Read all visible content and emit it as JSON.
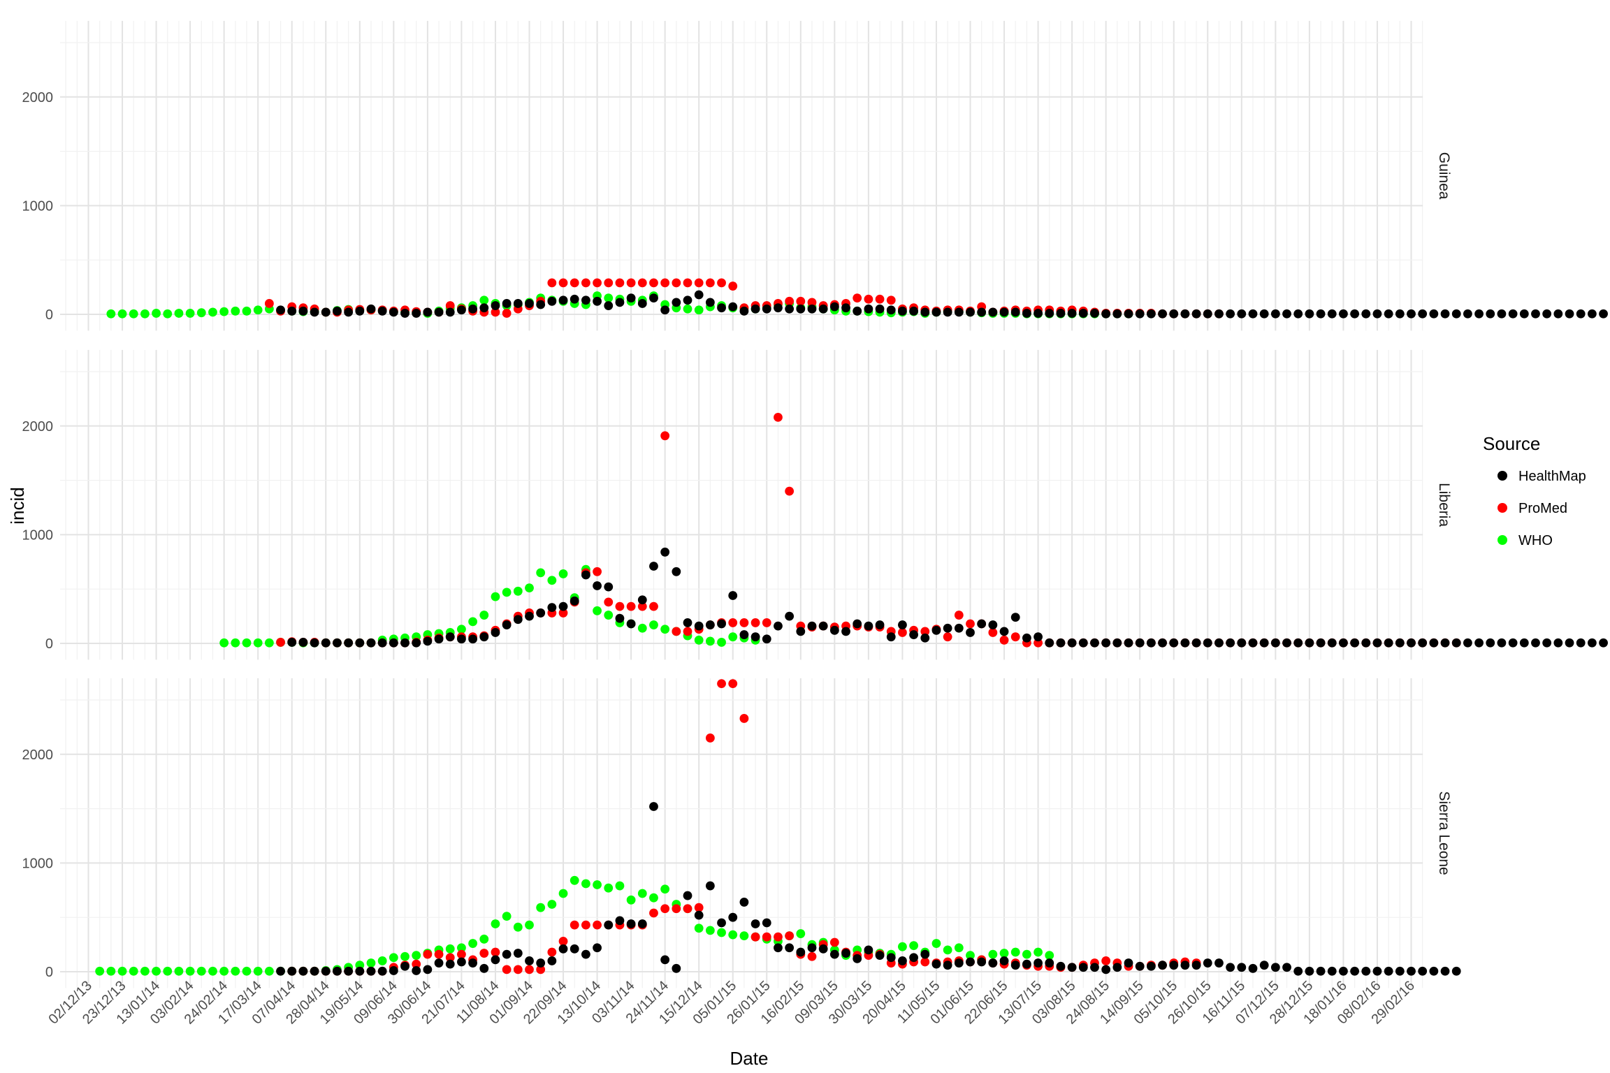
{
  "chart_data": {
    "type": "scatter",
    "title": "",
    "xlabel": "Date",
    "ylabel": "incid",
    "x_ticks": [
      "02/12/13",
      "23/12/13",
      "13/01/14",
      "03/02/14",
      "24/02/14",
      "17/03/14",
      "07/04/14",
      "28/04/14",
      "19/05/14",
      "09/06/14",
      "30/06/14",
      "21/07/14",
      "11/08/14",
      "01/09/14",
      "22/09/14",
      "13/10/14",
      "03/11/14",
      "24/11/14",
      "15/12/14",
      "05/01/15",
      "26/01/15",
      "16/02/15",
      "09/03/15",
      "30/03/15",
      "20/04/15",
      "11/05/15",
      "01/06/15",
      "22/06/15",
      "13/07/15",
      "03/08/15",
      "24/08/15",
      "14/09/15",
      "05/10/15",
      "26/10/15",
      "16/11/15",
      "07/12/15",
      "28/12/15",
      "18/01/16",
      "08/02/16",
      "29/02/16"
    ],
    "y_ticks": [
      0,
      1000,
      2000
    ],
    "ylim": [
      -150,
      2700
    ],
    "grid": true,
    "facet_labels": [
      "Guinea",
      "Liberia",
      "Sierra Leone"
    ],
    "legend": {
      "title": "Source",
      "position": "right",
      "entries": [
        {
          "label": "HealthMap",
          "color": "#000000"
        },
        {
          "label": "ProMed",
          "color": "#ff0000"
        },
        {
          "label": "WHO",
          "color": "#00ff00"
        }
      ]
    },
    "facets": [
      {
        "name": "Guinea",
        "series": [
          {
            "name": "WHO",
            "color": "#00ff00",
            "start": "16/12/13",
            "values": [
              5,
              5,
              5,
              5,
              10,
              5,
              10,
              10,
              15,
              20,
              25,
              30,
              30,
              40,
              50,
              35,
              30,
              25,
              25,
              20,
              35,
              45,
              40,
              40,
              35,
              25,
              20,
              15,
              10,
              30,
              55,
              60,
              80,
              130,
              100,
              80,
              90,
              110,
              150,
              130,
              120,
              100,
              90,
              170,
              150,
              140,
              120,
              130,
              170,
              90,
              60,
              50,
              40,
              70,
              80,
              60,
              55,
              50,
              60,
              90,
              100,
              60,
              70,
              50,
              40,
              30,
              30,
              25,
              20,
              15,
              20,
              25,
              10,
              20,
              30,
              25,
              20,
              15,
              10,
              10,
              10,
              5,
              5,
              5,
              5,
              5,
              5,
              5,
              5,
              5,
              5
            ]
          },
          {
            "name": "ProMed",
            "color": "#ff0000",
            "start": "24/03/14",
            "values": [
              100,
              30,
              70,
              60,
              50,
              20,
              20,
              40,
              45,
              40,
              40,
              30,
              40,
              25,
              20,
              20,
              80,
              50,
              30,
              20,
              20,
              10,
              50,
              80,
              120,
              290,
              290,
              290,
              290,
              290,
              290,
              290,
              290,
              290,
              290,
              290,
              290,
              290,
              290,
              290,
              290,
              260,
              60,
              80,
              80,
              100,
              120,
              120,
              110,
              80,
              90,
              100,
              150,
              140,
              140,
              130,
              50,
              60,
              40,
              30,
              40,
              40,
              30,
              70,
              20,
              30,
              40,
              30,
              40,
              40,
              30,
              40,
              30,
              20,
              10,
              10,
              10,
              10,
              10,
              5,
              5,
              5,
              5,
              5,
              5
            ]
          },
          {
            "name": "HealthMap",
            "color": "#000000",
            "start": "31/03/14",
            "values": [
              40,
              30,
              30,
              20,
              20,
              30,
              20,
              30,
              50,
              30,
              20,
              10,
              10,
              20,
              20,
              20,
              40,
              50,
              60,
              80,
              100,
              100,
              100,
              90,
              120,
              130,
              140,
              130,
              120,
              80,
              110,
              150,
              100,
              150,
              40,
              110,
              130,
              180,
              110,
              60,
              70,
              30,
              50,
              50,
              60,
              50,
              50,
              50,
              50,
              70,
              60,
              30,
              50,
              50,
              40,
              30,
              30,
              20,
              20,
              20,
              20,
              20,
              20,
              20,
              20,
              20,
              10,
              10,
              10,
              10,
              10,
              10,
              10,
              5,
              5,
              5,
              5,
              5,
              5,
              5,
              5,
              5,
              5,
              5,
              5,
              5,
              5,
              5,
              5,
              5,
              5,
              5,
              5,
              5,
              5,
              5,
              5,
              5,
              5,
              5,
              5,
              5,
              5,
              5,
              5,
              5,
              5,
              5,
              5,
              5,
              5,
              5,
              5,
              5,
              5,
              5,
              5,
              5,
              5,
              5,
              5
            ]
          }
        ]
      },
      {
        "name": "Liberia",
        "series": [
          {
            "name": "WHO",
            "color": "#00ff00",
            "start": "24/02/14",
            "values": [
              5,
              5,
              5,
              5,
              5,
              10,
              10,
              5,
              5,
              5,
              5,
              5,
              5,
              5,
              30,
              40,
              50,
              60,
              80,
              90,
              100,
              130,
              200,
              260,
              430,
              470,
              480,
              510,
              650,
              580,
              640,
              420,
              680,
              300,
              260,
              190,
              180,
              140,
              170,
              130,
              110,
              70,
              30,
              20,
              10,
              60,
              50,
              30
            ]
          },
          {
            "name": "ProMed",
            "color": "#ff0000",
            "start": "31/03/14",
            "values": [
              10,
              15,
              10,
              10,
              5,
              5,
              5,
              5,
              5,
              5,
              5,
              5,
              10,
              30,
              50,
              60,
              60,
              60,
              70,
              120,
              180,
              250,
              280,
              280,
              280,
              280,
              380,
              650,
              660,
              380,
              340,
              340,
              340,
              340,
              1910,
              110,
              110,
              130,
              170,
              190,
              190,
              190,
              190,
              190,
              2080,
              1400,
              160,
              150,
              160,
              150,
              160,
              160,
              150,
              150,
              110,
              100,
              120,
              110,
              130,
              60,
              260,
              180,
              180,
              100,
              30,
              60,
              5,
              5,
              5,
              5,
              5,
              5,
              5,
              5,
              5,
              5,
              5,
              5,
              5,
              5,
              5,
              5,
              5,
              5,
              5,
              5,
              5,
              5,
              5,
              5,
              5,
              5,
              5,
              5,
              5,
              5,
              5,
              5,
              5,
              5,
              5,
              5,
              5,
              5,
              5
            ]
          },
          {
            "name": "HealthMap",
            "color": "#000000",
            "start": "07/04/14",
            "values": [
              10,
              10,
              5,
              5,
              5,
              5,
              5,
              5,
              5,
              5,
              5,
              5,
              20,
              40,
              60,
              40,
              40,
              60,
              100,
              170,
              220,
              250,
              280,
              330,
              340,
              390,
              630,
              530,
              520,
              230,
              180,
              400,
              710,
              840,
              660,
              190,
              160,
              170,
              180,
              440,
              80,
              60,
              40,
              160,
              250,
              110,
              160,
              160,
              120,
              110,
              180,
              160,
              170,
              60,
              170,
              80,
              50,
              120,
              140,
              140,
              100,
              180,
              170,
              110,
              240,
              50,
              60,
              5,
              5,
              5,
              5,
              5,
              5,
              5,
              5,
              5,
              5,
              5,
              5,
              5,
              5,
              5,
              5,
              5,
              5,
              5,
              5,
              5,
              5,
              5,
              5,
              5,
              5,
              5,
              5,
              5,
              5,
              5,
              5,
              5,
              5,
              5,
              5,
              5,
              5,
              5,
              5,
              5,
              5,
              5,
              5,
              5,
              5,
              5,
              5,
              5,
              5,
              5,
              5,
              5,
              5
            ]
          }
        ]
      },
      {
        "name": "Sierra Leone",
        "series": [
          {
            "name": "WHO",
            "color": "#00ff00",
            "start": "09/12/13",
            "values": [
              5,
              5,
              5,
              5,
              5,
              5,
              5,
              5,
              5,
              5,
              5,
              5,
              5,
              5,
              5,
              5,
              5,
              5,
              5,
              5,
              10,
              20,
              40,
              60,
              80,
              100,
              130,
              140,
              150,
              170,
              200,
              210,
              220,
              260,
              300,
              440,
              510,
              410,
              430,
              590,
              620,
              720,
              840,
              810,
              800,
              770,
              790,
              660,
              720,
              680,
              760,
              620,
              580,
              400,
              380,
              360,
              340,
              330,
              320,
              300,
              280,
              330,
              350,
              250,
              270,
              200,
              150,
              200,
              180,
              170,
              160,
              230,
              240,
              180,
              260,
              200,
              220,
              150,
              110,
              160,
              170,
              180,
              160,
              180,
              150
            ]
          },
          {
            "name": "ProMed",
            "color": "#ff0000",
            "start": "07/04/14",
            "values": [
              5,
              5,
              5,
              5,
              5,
              5,
              5,
              5,
              5,
              40,
              60,
              70,
              160,
              160,
              130,
              160,
              110,
              170,
              180,
              20,
              20,
              20,
              20,
              180,
              280,
              430,
              430,
              430,
              430,
              430,
              430,
              430,
              540,
              580,
              580,
              580,
              590,
              2150,
              2650,
              2650,
              2330,
              320,
              320,
              320,
              330,
              160,
              140,
              250,
              270,
              180,
              150,
              150,
              160,
              80,
              70,
              90,
              90,
              80,
              90,
              100,
              90,
              110,
              80,
              70,
              80,
              60,
              50,
              50,
              40,
              40,
              60,
              80,
              100,
              80,
              50,
              50,
              60,
              60,
              80,
              90,
              80
            ]
          },
          {
            "name": "HealthMap",
            "color": "#000000",
            "start": "31/03/14",
            "values": [
              5,
              5,
              5,
              5,
              5,
              5,
              5,
              5,
              5,
              5,
              10,
              50,
              10,
              20,
              80,
              70,
              90,
              80,
              30,
              110,
              160,
              170,
              100,
              80,
              100,
              210,
              210,
              160,
              220,
              430,
              470,
              440,
              440,
              1520,
              110,
              30,
              700,
              520,
              790,
              450,
              500,
              640,
              440,
              450,
              220,
              220,
              180,
              220,
              210,
              160,
              170,
              120,
              200,
              150,
              130,
              100,
              130,
              160,
              70,
              60,
              80,
              90,
              90,
              80,
              100,
              60,
              70,
              80,
              80,
              50,
              40,
              40,
              40,
              20,
              40,
              80,
              50,
              50,
              60,
              60,
              60,
              60,
              80,
              80,
              40,
              40,
              30,
              60,
              40,
              40,
              5,
              5,
              5,
              5,
              5,
              5,
              5,
              5,
              5,
              5,
              5,
              5,
              5,
              5,
              5
            ]
          }
        ]
      }
    ]
  }
}
